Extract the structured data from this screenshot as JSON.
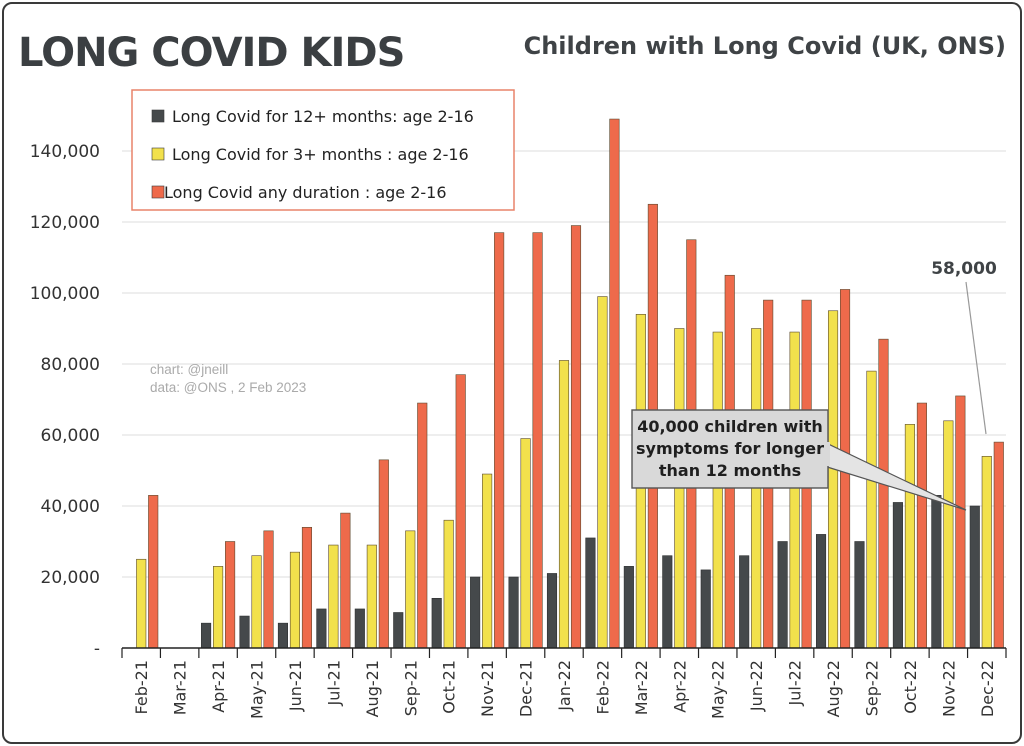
{
  "logo": {
    "text": "LONG COVID KIDS"
  },
  "credits": {
    "line1": "chart: @jneill",
    "line2": "data: @ONS , 2 Feb  2023"
  },
  "callouts": {
    "main": [
      "40,000 children with",
      "symptoms for longer",
      "than 12 months"
    ],
    "value_label": "58,000"
  },
  "chart_data": {
    "type": "bar",
    "title": "Children with Long Covid (UK, ONS)",
    "xlabel": "",
    "ylabel": "",
    "ylim": [
      0,
      160000
    ],
    "yticks": [
      0,
      20000,
      40000,
      60000,
      80000,
      100000,
      120000,
      140000
    ],
    "ytick_labels": [
      "-",
      "20,000",
      "40,000",
      "60,000",
      "80,000",
      "100,000",
      "120,000",
      "140,000"
    ],
    "grid": true,
    "legend_position": "top-left",
    "categories": [
      "Feb-21",
      "Mar-21",
      "Apr-21",
      "May-21",
      "Jun-21",
      "Jul-21",
      "Aug-21",
      "Sep-21",
      "Oct-21",
      "Nov-21",
      "Dec-21",
      "Jan-22",
      "Feb-22",
      "Mar-22",
      "Apr-22",
      "May-22",
      "Jun-22",
      "Jul-22",
      "Aug-22",
      "Sep-22",
      "Oct-22",
      "Nov-22",
      "Dec-22"
    ],
    "series": [
      {
        "name": "Long Covid for 12+ months: age 2-16",
        "color": "#45494b",
        "values": [
          null,
          null,
          7000,
          9000,
          7000,
          11000,
          11000,
          10000,
          14000,
          20000,
          20000,
          21000,
          31000,
          23000,
          26000,
          22000,
          26000,
          30000,
          32000,
          30000,
          41000,
          43000,
          40000
        ]
      },
      {
        "name": "Long Covid for 3+ months : age 2-16",
        "color": "#f2e14c",
        "values": [
          25000,
          null,
          23000,
          26000,
          27000,
          29000,
          29000,
          33000,
          36000,
          49000,
          59000,
          81000,
          99000,
          94000,
          90000,
          89000,
          90000,
          89000,
          95000,
          78000,
          63000,
          64000,
          54000
        ]
      },
      {
        "name": "Long Covid any duration : age 2-16",
        "color": "#ee6a4b",
        "values": [
          43000,
          null,
          30000,
          33000,
          34000,
          38000,
          53000,
          69000,
          77000,
          117000,
          117000,
          119000,
          149000,
          125000,
          115000,
          105000,
          98000,
          98000,
          101000,
          87000,
          69000,
          71000,
          58000
        ]
      }
    ]
  }
}
